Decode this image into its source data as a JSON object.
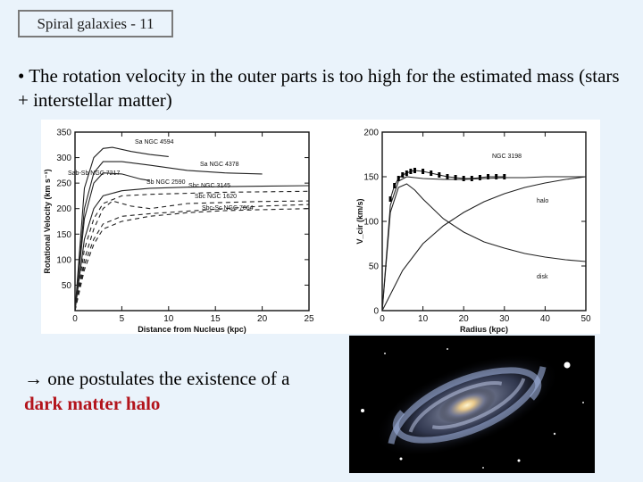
{
  "slide": {
    "title": "Spiral galaxies - 11",
    "bullet_mark": "•",
    "bullet": "The rotation velocity in the outer parts is too high for the estimated mass (stars + interstellar matter)",
    "note_prefix": "→ one postulates the existence of a ",
    "note_highlight": "dark matter halo",
    "highlight_color": "#b3141c"
  },
  "chart_data": [
    {
      "type": "line",
      "xlabel": "Distance from Nucleus (kpc)",
      "ylabel": "Rotational Velocity (km s⁻¹)",
      "xlim": [
        0,
        25
      ],
      "ylim": [
        0,
        350
      ],
      "xticks": [
        0,
        5,
        10,
        15,
        20,
        25
      ],
      "yticks": [
        50,
        100,
        150,
        200,
        250,
        300,
        350
      ],
      "series": [
        {
          "name": "Sa NGC 4594",
          "x": [
            0,
            1,
            2,
            3,
            4,
            6,
            8,
            10
          ],
          "y": [
            0,
            240,
            300,
            318,
            320,
            312,
            306,
            302
          ]
        },
        {
          "name": "Sa NGC 4378",
          "x": [
            0,
            1,
            2,
            3,
            5,
            8,
            12,
            16,
            20
          ],
          "y": [
            0,
            200,
            270,
            292,
            292,
            285,
            275,
            270,
            268
          ]
        },
        {
          "name": "Sab-Sb NGC 7217",
          "x": [
            0,
            1,
            2,
            3,
            5,
            7,
            8
          ],
          "y": [
            0,
            180,
            250,
            270,
            268,
            258,
            255
          ]
        },
        {
          "name": "Sb NGC 2590",
          "x": [
            0,
            1,
            2,
            3,
            5,
            8,
            12,
            16,
            20,
            25
          ],
          "y": [
            0,
            140,
            200,
            225,
            235,
            240,
            242,
            243,
            244,
            245
          ]
        },
        {
          "name": "Sbc NGC 3145",
          "x": [
            0,
            1,
            2,
            3,
            5,
            8,
            12,
            16,
            20,
            25
          ],
          "y": [
            0,
            120,
            180,
            210,
            225,
            228,
            230,
            232,
            233,
            234
          ]
        },
        {
          "name": "Sbc NGC 1620",
          "x": [
            0,
            1,
            2,
            3,
            4,
            6,
            8,
            10,
            12,
            16,
            20,
            25
          ],
          "y": [
            0,
            100,
            160,
            200,
            215,
            205,
            200,
            205,
            210,
            212,
            214,
            215
          ]
        },
        {
          "name": "Sbc-Sc NGC 7664",
          "x": [
            0,
            1,
            2,
            3,
            5,
            8,
            12,
            16,
            20,
            25
          ],
          "y": [
            0,
            90,
            140,
            170,
            185,
            190,
            195,
            200,
            205,
            208
          ]
        },
        {
          "name": "",
          "x": [
            0,
            1,
            2,
            3,
            5,
            8,
            12,
            16,
            20,
            25
          ],
          "y": [
            0,
            80,
            130,
            160,
            175,
            185,
            192,
            196,
            198,
            200
          ]
        }
      ],
      "annotations": [
        "Sa NGC 4594",
        "Sa NGC 4378",
        "Sab-Sb NGC 7217",
        "Sb NGC 2590",
        "Sbc NGC 3145",
        "Sbc NGC 1620",
        "Sbc-Sc NGC 7664"
      ]
    },
    {
      "type": "line",
      "xlabel": "Radius (kpc)",
      "ylabel": "V_cir (km/s)",
      "xlim": [
        0,
        50
      ],
      "ylim": [
        0,
        200
      ],
      "xticks": [
        0,
        10,
        20,
        30,
        40,
        50
      ],
      "yticks": [
        0,
        50,
        100,
        150,
        200
      ],
      "series": [
        {
          "name": "NGC 3198",
          "x": [
            2,
            3,
            4,
            5,
            6,
            7,
            8,
            10,
            12,
            14,
            16,
            18,
            20,
            22,
            24,
            26,
            28,
            30
          ],
          "y": [
            125,
            140,
            148,
            152,
            154,
            156,
            157,
            156,
            154,
            152,
            150,
            149,
            148,
            148,
            149,
            150,
            150,
            150
          ]
        },
        {
          "name": "halo",
          "x": [
            0,
            5,
            10,
            15,
            20,
            25,
            30,
            35,
            40,
            45,
            50
          ],
          "y": [
            0,
            45,
            75,
            95,
            110,
            122,
            131,
            138,
            143,
            147,
            150
          ]
        },
        {
          "name": "disk",
          "x": [
            0,
            2,
            4,
            6,
            8,
            10,
            15,
            20,
            25,
            30,
            35,
            40,
            45,
            50
          ],
          "y": [
            0,
            110,
            138,
            142,
            135,
            125,
            103,
            88,
            77,
            70,
            64,
            60,
            57,
            55
          ]
        },
        {
          "name": "",
          "x": [
            0,
            2,
            4,
            6,
            8,
            10,
            15,
            20,
            25,
            30,
            35,
            40,
            45,
            50
          ],
          "y": [
            0,
            118,
            145,
            150,
            149,
            148,
            147,
            147,
            148,
            149,
            149,
            150,
            150,
            150
          ]
        }
      ],
      "annotations": [
        "NGC 3198",
        "halo",
        "disk"
      ]
    }
  ],
  "galaxy_image": {
    "icon": "spiral-galaxy-photo",
    "bg": "#000000"
  }
}
